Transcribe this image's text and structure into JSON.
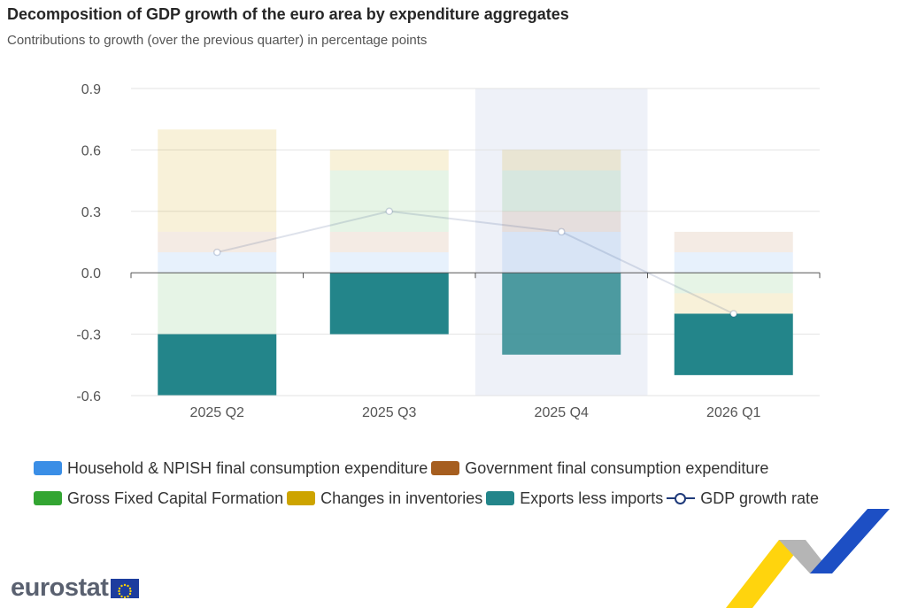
{
  "title": "Decomposition of GDP growth of the euro area by expenditure aggregates",
  "subtitle": "Contributions to growth (over the previous quarter) in percentage points",
  "logo_text": "eurostat",
  "colors": {
    "household": "#3a8ee6",
    "government": "#a65e1f",
    "gfcf": "#33a532",
    "inventories": "#cda400",
    "exports": "#23858a",
    "gdp_line": "#1f3a7a",
    "highlight_band": "#eef1f8"
  },
  "chart_data": {
    "type": "bar",
    "stacked": true,
    "title": "Decomposition of GDP growth of the euro area by expenditure aggregates",
    "subtitle": "Contributions to growth (over the previous quarter) in percentage points",
    "categories": [
      "2025 Q2",
      "2025 Q3",
      "2025 Q4",
      "2026 Q1"
    ],
    "ylim": [
      -0.6,
      0.9
    ],
    "yticks": [
      "0.9",
      "0.6",
      "0.3",
      "0.0",
      "-0.3",
      "-0.6"
    ],
    "highlighted_category": "2025 Q4",
    "grid": true,
    "legend_position": "bottom",
    "series": [
      {
        "name": "Household & NPISH final consumption expenditure",
        "key": "household",
        "values": [
          0.1,
          0.1,
          0.2,
          0.1
        ]
      },
      {
        "name": "Government final consumption expenditure",
        "key": "government",
        "values": [
          0.1,
          0.1,
          0.1,
          0.1
        ]
      },
      {
        "name": "Gross Fixed Capital Formation",
        "key": "gfcf",
        "values": [
          -0.3,
          0.3,
          0.2,
          -0.1
        ]
      },
      {
        "name": "Changes in inventories",
        "key": "inventories",
        "values": [
          0.5,
          0.1,
          0.1,
          -0.1
        ]
      },
      {
        "name": "Exports less imports",
        "key": "exports",
        "values": [
          -0.3,
          -0.3,
          -0.4,
          -0.3
        ]
      }
    ],
    "line_series": {
      "name": "GDP growth rate",
      "values": [
        0.1,
        0.3,
        0.2,
        -0.2
      ]
    }
  }
}
